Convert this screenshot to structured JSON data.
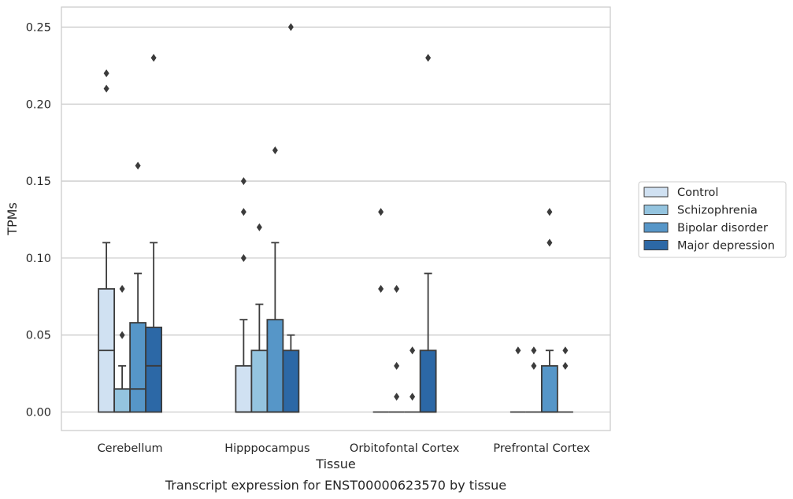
{
  "chart_data": {
    "type": "box",
    "xlabel": "Tissue",
    "ylabel": "TPMs",
    "caption": "Transcript expression for ENST00000623570 by tissue",
    "ylim": [
      -0.012,
      0.263
    ],
    "yticks": [
      0.0,
      0.05,
      0.1,
      0.15,
      0.2,
      0.25
    ],
    "ytick_labels": [
      "0.00",
      "0.05",
      "0.10",
      "0.15",
      "0.20",
      "0.25"
    ],
    "grid": true,
    "legend_position": "right",
    "categories": [
      "Cerebellum",
      "Hipppocampus",
      "Orbitofontal Cortex",
      "Prefrontal Cortex"
    ],
    "series": [
      {
        "name": "Control",
        "color": "#d0e1f2",
        "boxes": [
          {
            "q1": 0.0,
            "median": 0.04,
            "q3": 0.08,
            "whisker_low": 0.0,
            "whisker_high": 0.11,
            "outliers": [
              0.21,
              0.22
            ]
          },
          {
            "q1": 0.0,
            "median": 0.0,
            "q3": 0.03,
            "whisker_low": 0.0,
            "whisker_high": 0.06,
            "outliers": [
              0.1,
              0.13,
              0.15
            ]
          },
          {
            "q1": 0.0,
            "median": 0.0,
            "q3": 0.0,
            "whisker_low": 0.0,
            "whisker_high": 0.0,
            "outliers": [
              0.08,
              0.13
            ]
          },
          {
            "q1": 0.0,
            "median": 0.0,
            "q3": 0.0,
            "whisker_low": 0.0,
            "whisker_high": 0.0,
            "outliers": [
              0.04
            ]
          }
        ]
      },
      {
        "name": "Schizophrenia",
        "color": "#94c4df",
        "boxes": [
          {
            "q1": 0.0,
            "median": 0.0,
            "q3": 0.015,
            "whisker_low": 0.0,
            "whisker_high": 0.03,
            "outliers": [
              0.05,
              0.08
            ]
          },
          {
            "q1": 0.0,
            "median": 0.0,
            "q3": 0.04,
            "whisker_low": 0.0,
            "whisker_high": 0.07,
            "outliers": [
              0.12
            ]
          },
          {
            "q1": 0.0,
            "median": 0.0,
            "q3": 0.0,
            "whisker_low": 0.0,
            "whisker_high": 0.0,
            "outliers": [
              0.01,
              0.03,
              0.08
            ]
          },
          {
            "q1": 0.0,
            "median": 0.0,
            "q3": 0.0,
            "whisker_low": 0.0,
            "whisker_high": 0.0,
            "outliers": [
              0.03,
              0.04
            ]
          }
        ]
      },
      {
        "name": "Bipolar disorder",
        "color": "#5696c8",
        "boxes": [
          {
            "q1": 0.0,
            "median": 0.015,
            "q3": 0.058,
            "whisker_low": 0.0,
            "whisker_high": 0.09,
            "outliers": [
              0.16
            ]
          },
          {
            "q1": 0.0,
            "median": 0.0,
            "q3": 0.06,
            "whisker_low": 0.0,
            "whisker_high": 0.11,
            "outliers": [
              0.17
            ]
          },
          {
            "q1": 0.0,
            "median": 0.0,
            "q3": 0.0,
            "whisker_low": 0.0,
            "whisker_high": 0.0,
            "outliers": [
              0.01,
              0.04
            ]
          },
          {
            "q1": 0.0,
            "median": 0.0,
            "q3": 0.03,
            "whisker_low": 0.0,
            "whisker_high": 0.04,
            "outliers": [
              0.11,
              0.13
            ]
          }
        ]
      },
      {
        "name": "Major depression",
        "color": "#2c68a6",
        "boxes": [
          {
            "q1": 0.0,
            "median": 0.03,
            "q3": 0.055,
            "whisker_low": 0.0,
            "whisker_high": 0.11,
            "outliers": [
              0.23
            ]
          },
          {
            "q1": 0.0,
            "median": 0.0,
            "q3": 0.04,
            "whisker_low": 0.0,
            "whisker_high": 0.05,
            "outliers": [
              0.25
            ]
          },
          {
            "q1": 0.0,
            "median": 0.0,
            "q3": 0.04,
            "whisker_low": 0.0,
            "whisker_high": 0.09,
            "outliers": [
              0.23
            ]
          },
          {
            "q1": 0.0,
            "median": 0.0,
            "q3": 0.0,
            "whisker_low": 0.0,
            "whisker_high": 0.0,
            "outliers": [
              0.03,
              0.04
            ]
          }
        ]
      }
    ]
  }
}
